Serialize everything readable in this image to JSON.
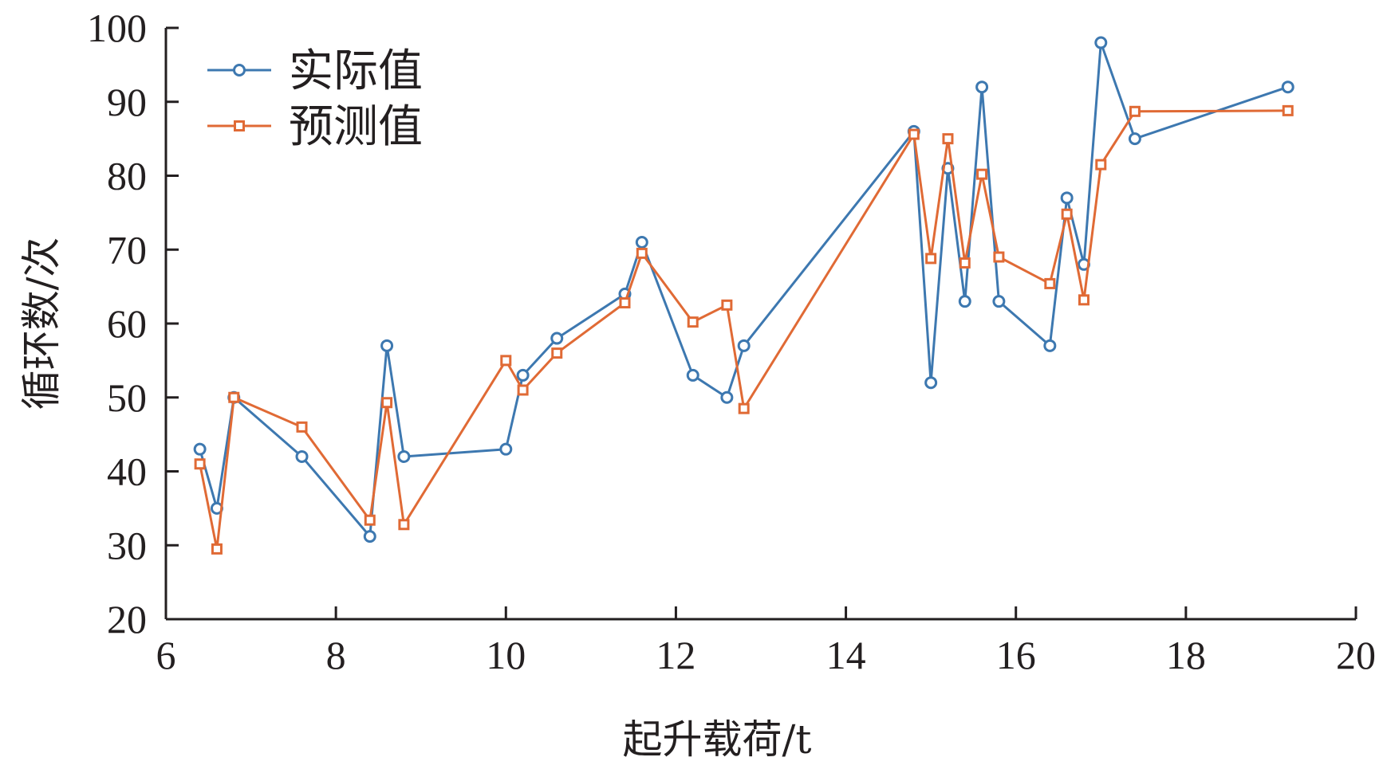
{
  "chart_data": {
    "type": "line",
    "xlabel": "起升载荷/t",
    "ylabel": "循环数/次",
    "xlim": [
      6,
      20
    ],
    "ylim": [
      20,
      100
    ],
    "xticks": [
      "6",
      "8",
      "10",
      "12",
      "14",
      "16",
      "18",
      "20"
    ],
    "yticks": [
      "20",
      "30",
      "40",
      "50",
      "60",
      "70",
      "80",
      "90",
      "100"
    ],
    "grid": false,
    "legend_position": "top-left",
    "series": [
      {
        "name": "实际值",
        "color": "#3d78b0",
        "marker": "circle",
        "points": [
          [
            6.4,
            43
          ],
          [
            6.6,
            35
          ],
          [
            6.8,
            50
          ],
          [
            7.6,
            42
          ],
          [
            8.4,
            31.2
          ],
          [
            8.6,
            57
          ],
          [
            8.8,
            42
          ],
          [
            10.0,
            43
          ],
          [
            10.2,
            53
          ],
          [
            10.6,
            58
          ],
          [
            11.4,
            64
          ],
          [
            11.6,
            71
          ],
          [
            12.2,
            53
          ],
          [
            12.6,
            50
          ],
          [
            12.8,
            57
          ],
          [
            14.8,
            86
          ],
          [
            15.0,
            52
          ],
          [
            15.2,
            81
          ],
          [
            15.4,
            63
          ],
          [
            15.6,
            92
          ],
          [
            15.8,
            63
          ],
          [
            16.4,
            57
          ],
          [
            16.6,
            77
          ],
          [
            16.8,
            68
          ],
          [
            17.0,
            98
          ],
          [
            17.4,
            85
          ],
          [
            19.2,
            92
          ]
        ]
      },
      {
        "name": "预测值",
        "color": "#e06a35",
        "marker": "square",
        "points": [
          [
            6.4,
            41
          ],
          [
            6.6,
            29.5
          ],
          [
            6.8,
            50
          ],
          [
            7.6,
            46
          ],
          [
            8.4,
            33.4
          ],
          [
            8.6,
            49.3
          ],
          [
            8.8,
            32.8
          ],
          [
            10.0,
            55
          ],
          [
            10.2,
            51
          ],
          [
            10.6,
            56
          ],
          [
            11.4,
            62.8
          ],
          [
            11.6,
            69.5
          ],
          [
            12.2,
            60.2
          ],
          [
            12.6,
            62.5
          ],
          [
            12.8,
            48.5
          ],
          [
            14.8,
            85.6
          ],
          [
            15.0,
            68.8
          ],
          [
            15.2,
            85
          ],
          [
            15.4,
            68.2
          ],
          [
            15.6,
            80.2
          ],
          [
            15.8,
            69
          ],
          [
            16.4,
            65.4
          ],
          [
            16.6,
            74.8
          ],
          [
            16.8,
            63.2
          ],
          [
            17.0,
            81.5
          ],
          [
            17.4,
            88.7
          ],
          [
            19.2,
            88.8
          ]
        ]
      }
    ]
  }
}
